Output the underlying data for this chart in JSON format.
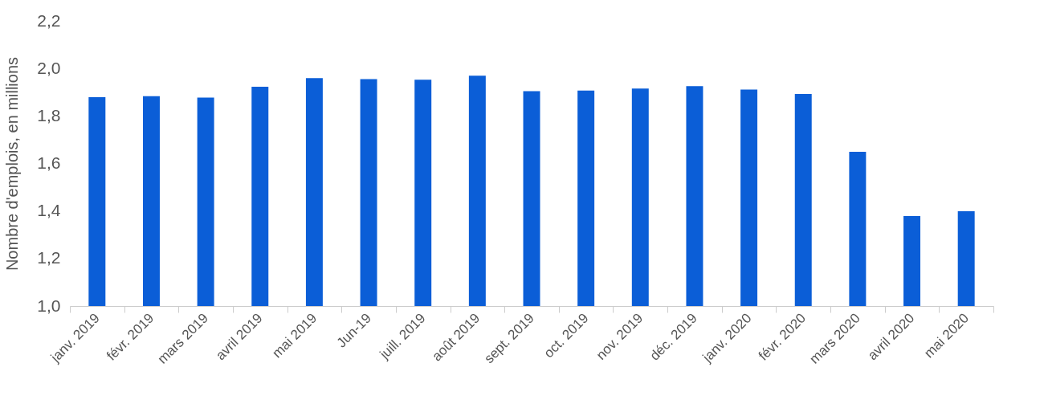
{
  "chart_data": {
    "type": "bar",
    "ylabel": "Nombre d'emplois, en millions",
    "categories": [
      "janv. 2019",
      "févr. 2019",
      "mars 2019",
      "avril 2019",
      "mai 2019",
      "Jun-19",
      "juill. 2019",
      "août 2019",
      "sept. 2019",
      "oct. 2019",
      "nov. 2019",
      "déc. 2019",
      "janv. 2020",
      "févr. 2020",
      "mars 2020",
      "avril 2020",
      "mai 2020"
    ],
    "values": [
      1.879,
      1.883,
      1.877,
      1.923,
      1.959,
      1.955,
      1.952,
      1.969,
      1.904,
      1.907,
      1.915,
      1.925,
      1.911,
      1.892,
      1.649,
      1.379,
      1.399
    ],
    "color": "#0b5ed7",
    "ylim": [
      1.0,
      2.2
    ],
    "yticks": [
      {
        "value": 1.0,
        "label": "1,0"
      },
      {
        "value": 1.2,
        "label": "1,2"
      },
      {
        "value": 1.4,
        "label": "1,4"
      },
      {
        "value": 1.6,
        "label": "1,6"
      },
      {
        "value": 1.8,
        "label": "1,8"
      },
      {
        "value": 2.0,
        "label": "2,0"
      },
      {
        "value": 2.2,
        "label": "2,2"
      }
    ],
    "grid": false
  }
}
